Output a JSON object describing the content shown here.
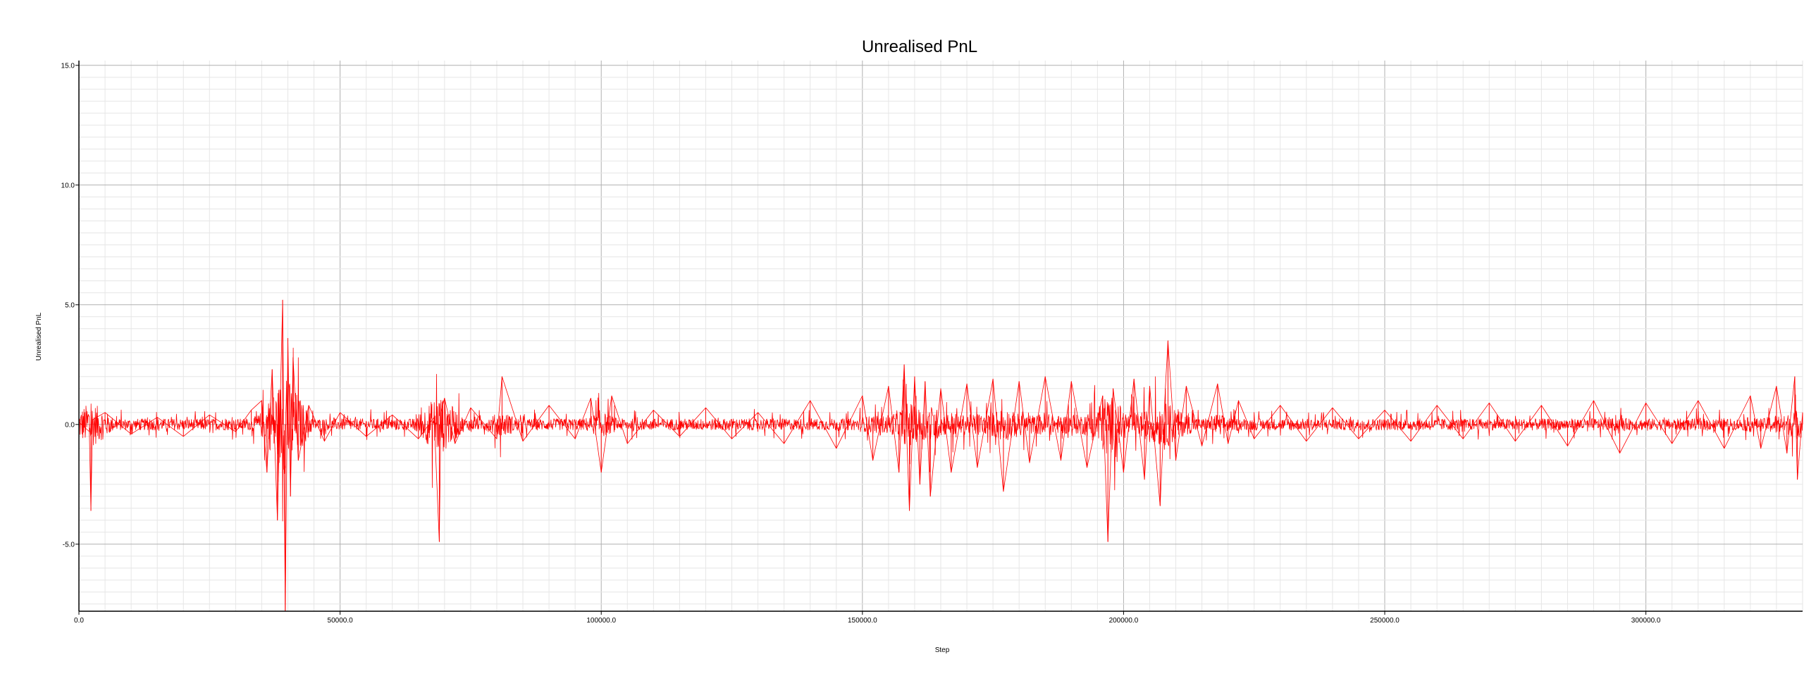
{
  "chart_data": {
    "type": "line",
    "title": "Unrealised PnL",
    "xlabel": "Step",
    "ylabel": "Unrealised PnL",
    "xlim": [
      0,
      330000
    ],
    "ylim": [
      -7.8,
      15.2
    ],
    "grid": true,
    "legend": "none",
    "x_ticks": [
      0,
      50000,
      100000,
      150000,
      200000,
      250000,
      300000
    ],
    "x_tick_labels": [
      "0.0",
      "50000.0",
      "100000.0",
      "150000.0",
      "200000.0",
      "250000.0",
      "300000.0"
    ],
    "y_ticks": [
      -5,
      0,
      5,
      10,
      15
    ],
    "y_tick_labels": [
      "-5.0",
      "0.0",
      "5.0",
      "10.0",
      "15.0"
    ],
    "series": [
      {
        "color": "#ff0000",
        "x": [
          0,
          2000,
          2300,
          2600,
          5000,
          10000,
          15000,
          20000,
          25000,
          30000,
          33000,
          35000,
          36000,
          37000,
          38000,
          39000,
          39500,
          40000,
          40500,
          41000,
          42000,
          44000,
          47000,
          50000,
          55000,
          60000,
          65000,
          68000,
          69000,
          69300,
          70000,
          72000,
          75000,
          80000,
          81000,
          85000,
          90000,
          95000,
          98000,
          100000,
          102000,
          105000,
          110000,
          115000,
          120000,
          125000,
          130000,
          135000,
          140000,
          145000,
          150000,
          152000,
          155000,
          157000,
          158000,
          159000,
          160000,
          161000,
          162000,
          163000,
          165000,
          167000,
          170000,
          172000,
          175000,
          177000,
          180000,
          182000,
          185000,
          188000,
          190000,
          193000,
          196000,
          197000,
          198000,
          200000,
          202000,
          204000,
          205000,
          207000,
          208000,
          208500,
          210000,
          212000,
          215000,
          218000,
          220000,
          222000,
          225000,
          230000,
          235000,
          240000,
          245000,
          250000,
          255000,
          260000,
          265000,
          270000,
          275000,
          280000,
          285000,
          290000,
          295000,
          300000,
          305000,
          310000,
          315000,
          320000,
          322000,
          325000,
          327000,
          328500,
          329000,
          330000
        ],
        "y": [
          0.1,
          -0.3,
          -3.6,
          0.2,
          0.5,
          -0.4,
          0.3,
          -0.5,
          0.4,
          -0.3,
          0.6,
          1.0,
          -2.0,
          2.3,
          -4.0,
          5.2,
          -7.8,
          3.6,
          -3.0,
          2.8,
          -1.5,
          0.8,
          -0.7,
          0.5,
          -0.5,
          0.4,
          -0.6,
          0.3,
          -4.9,
          0.5,
          1.1,
          -0.8,
          0.7,
          -0.6,
          2.0,
          -0.7,
          0.8,
          -0.6,
          1.1,
          -2.0,
          1.2,
          -0.8,
          0.6,
          -0.5,
          0.7,
          -0.6,
          0.5,
          -0.8,
          1.0,
          -1.0,
          1.2,
          -1.5,
          1.6,
          -2.0,
          2.5,
          -3.6,
          2.0,
          -2.5,
          1.8,
          -3.0,
          1.5,
          -2.0,
          1.7,
          -1.8,
          1.9,
          -2.8,
          1.8,
          -1.6,
          2.0,
          -1.5,
          1.8,
          -1.8,
          1.2,
          -4.9,
          1.5,
          -2.0,
          1.9,
          -2.3,
          1.6,
          -3.4,
          1.5,
          3.5,
          -1.5,
          1.6,
          -0.9,
          1.7,
          -0.8,
          1.0,
          -0.6,
          0.8,
          -0.7,
          0.7,
          -0.6,
          0.6,
          -0.7,
          0.8,
          -0.6,
          0.9,
          -0.7,
          0.8,
          -0.9,
          1.0,
          -1.2,
          0.9,
          -0.8,
          1.0,
          -1.0,
          1.2,
          -1.0,
          1.6,
          -1.2,
          2.0,
          -2.3,
          0.5
        ]
      }
    ]
  }
}
